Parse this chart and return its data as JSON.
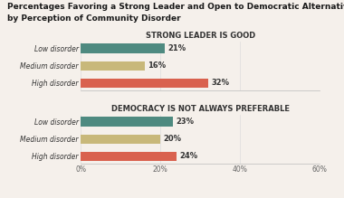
{
  "title_line1": "Percentages Favoring a Strong Leader and Open to Democratic Alternatives",
  "title_line2": "by Perception of Community Disorder",
  "section1_title": "STRONG LEADER IS GOOD",
  "section2_title": "DEMOCRACY IS NOT ALWAYS PREFERABLE",
  "categories": [
    "Low disorder",
    "Medium disorder",
    "High disorder"
  ],
  "section1_values": [
    21,
    16,
    32
  ],
  "section2_values": [
    23,
    20,
    24
  ],
  "colors": [
    "#4e8a80",
    "#c8b87a",
    "#d9614e"
  ],
  "xlim": [
    0,
    60
  ],
  "xticks": [
    0,
    20,
    40,
    60
  ],
  "xticklabels": [
    "0%",
    "20%",
    "40%",
    "60%"
  ],
  "bar_height": 0.55,
  "title_fontsize": 6.5,
  "section_title_fontsize": 6.0,
  "tick_fontsize": 5.5,
  "value_fontsize": 6.0,
  "background_color": "#f5f0eb",
  "grid_color": "#dddddd",
  "text_color": "#333333"
}
